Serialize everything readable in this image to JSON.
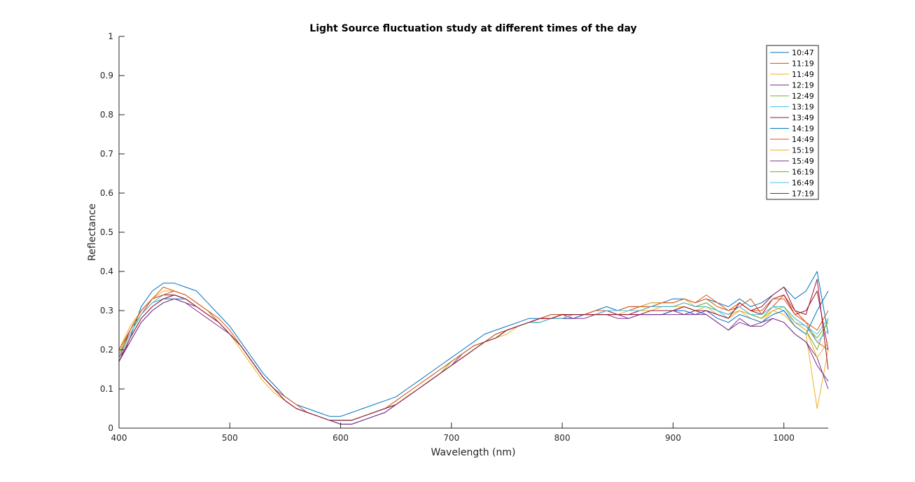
{
  "chart_data": {
    "type": "line",
    "title": "Light Source fluctuation study at different times of the day",
    "xlabel": "Wavelength (nm)",
    "ylabel": "Reflectance",
    "xlim": [
      400,
      1040
    ],
    "ylim": [
      0,
      1
    ],
    "x_ticks": [
      "400",
      "500",
      "600",
      "700",
      "800",
      "900",
      "1000"
    ],
    "y_ticks": [
      "0",
      "0.1",
      "0.2",
      "0.3",
      "0.4",
      "0.5",
      "0.6",
      "0.7",
      "0.8",
      "0.9",
      "1"
    ],
    "grid": false,
    "legend_position": "top-right",
    "x": [
      400,
      410,
      420,
      430,
      440,
      450,
      460,
      470,
      480,
      490,
      500,
      510,
      520,
      530,
      540,
      550,
      560,
      570,
      580,
      590,
      600,
      610,
      620,
      630,
      640,
      650,
      660,
      670,
      680,
      690,
      700,
      710,
      720,
      730,
      740,
      750,
      760,
      770,
      780,
      790,
      800,
      810,
      820,
      830,
      840,
      850,
      860,
      870,
      880,
      890,
      900,
      910,
      920,
      930,
      940,
      950,
      960,
      970,
      980,
      990,
      1000,
      1010,
      1020,
      1030,
      1040
    ],
    "series": [
      {
        "name": "10:47",
        "color": "#0072BD",
        "values": [
          0.17,
          0.23,
          0.31,
          0.35,
          0.37,
          0.37,
          0.36,
          0.35,
          0.32,
          0.29,
          0.26,
          0.22,
          0.18,
          0.14,
          0.11,
          0.08,
          0.06,
          0.05,
          0.04,
          0.03,
          0.03,
          0.04,
          0.05,
          0.06,
          0.07,
          0.08,
          0.1,
          0.12,
          0.14,
          0.16,
          0.18,
          0.2,
          0.22,
          0.24,
          0.25,
          0.26,
          0.27,
          0.28,
          0.28,
          0.29,
          0.29,
          0.29,
          0.29,
          0.3,
          0.31,
          0.3,
          0.31,
          0.31,
          0.32,
          0.32,
          0.33,
          0.33,
          0.32,
          0.33,
          0.32,
          0.31,
          0.33,
          0.31,
          0.32,
          0.34,
          0.36,
          0.33,
          0.35,
          0.4,
          0.24
        ]
      },
      {
        "name": "11:19",
        "color": "#D95319",
        "values": [
          0.19,
          0.24,
          0.29,
          0.33,
          0.36,
          0.35,
          0.34,
          0.32,
          0.3,
          0.28,
          0.25,
          0.21,
          0.17,
          0.13,
          0.1,
          0.08,
          0.06,
          0.04,
          0.03,
          0.02,
          0.02,
          0.02,
          0.03,
          0.04,
          0.05,
          0.06,
          0.08,
          0.1,
          0.12,
          0.14,
          0.16,
          0.18,
          0.2,
          0.22,
          0.23,
          0.25,
          0.26,
          0.27,
          0.28,
          0.29,
          0.29,
          0.29,
          0.29,
          0.3,
          0.3,
          0.3,
          0.3,
          0.31,
          0.31,
          0.32,
          0.32,
          0.33,
          0.32,
          0.34,
          0.32,
          0.3,
          0.31,
          0.33,
          0.29,
          0.31,
          0.34,
          0.3,
          0.27,
          0.22,
          0.2
        ]
      },
      {
        "name": "11:49",
        "color": "#EDB120",
        "values": [
          0.2,
          0.26,
          0.3,
          0.33,
          0.35,
          0.35,
          0.34,
          0.32,
          0.3,
          0.27,
          0.24,
          0.2,
          0.16,
          0.12,
          0.09,
          0.07,
          0.05,
          0.04,
          0.03,
          0.02,
          0.02,
          0.02,
          0.03,
          0.04,
          0.05,
          0.07,
          0.09,
          0.11,
          0.13,
          0.15,
          0.17,
          0.19,
          0.21,
          0.22,
          0.24,
          0.25,
          0.26,
          0.27,
          0.28,
          0.28,
          0.29,
          0.29,
          0.29,
          0.3,
          0.3,
          0.3,
          0.31,
          0.31,
          0.32,
          0.32,
          0.32,
          0.33,
          0.31,
          0.32,
          0.3,
          0.29,
          0.3,
          0.28,
          0.27,
          0.3,
          0.29,
          0.26,
          0.24,
          0.05,
          0.2
        ]
      },
      {
        "name": "12:19",
        "color": "#7E2F8E",
        "values": [
          0.18,
          0.22,
          0.27,
          0.3,
          0.32,
          0.33,
          0.32,
          0.31,
          0.29,
          0.27,
          0.24,
          0.21,
          0.17,
          0.13,
          0.1,
          0.07,
          0.05,
          0.04,
          0.03,
          0.02,
          0.01,
          0.01,
          0.02,
          0.03,
          0.04,
          0.06,
          0.08,
          0.1,
          0.12,
          0.14,
          0.16,
          0.19,
          0.21,
          0.22,
          0.24,
          0.25,
          0.26,
          0.27,
          0.28,
          0.28,
          0.29,
          0.28,
          0.29,
          0.29,
          0.29,
          0.29,
          0.28,
          0.29,
          0.29,
          0.29,
          0.3,
          0.29,
          0.3,
          0.29,
          0.27,
          0.25,
          0.28,
          0.26,
          0.27,
          0.28,
          0.27,
          0.24,
          0.22,
          0.18,
          0.1
        ]
      },
      {
        "name": "12:49",
        "color": "#77AC30",
        "values": [
          0.19,
          0.25,
          0.29,
          0.32,
          0.33,
          0.34,
          0.33,
          0.31,
          0.29,
          0.27,
          0.24,
          0.21,
          0.17,
          0.13,
          0.1,
          0.07,
          0.05,
          0.04,
          0.03,
          0.02,
          0.02,
          0.02,
          0.03,
          0.04,
          0.05,
          0.06,
          0.08,
          0.1,
          0.12,
          0.14,
          0.17,
          0.19,
          0.21,
          0.22,
          0.24,
          0.25,
          0.26,
          0.27,
          0.28,
          0.28,
          0.29,
          0.29,
          0.29,
          0.29,
          0.3,
          0.3,
          0.3,
          0.3,
          0.31,
          0.31,
          0.31,
          0.32,
          0.31,
          0.31,
          0.3,
          0.29,
          0.31,
          0.29,
          0.28,
          0.3,
          0.31,
          0.27,
          0.25,
          0.2,
          0.28
        ]
      },
      {
        "name": "13:19",
        "color": "#4DBEEE",
        "values": [
          0.18,
          0.24,
          0.29,
          0.32,
          0.34,
          0.34,
          0.33,
          0.31,
          0.29,
          0.27,
          0.24,
          0.21,
          0.17,
          0.13,
          0.1,
          0.07,
          0.05,
          0.04,
          0.03,
          0.02,
          0.02,
          0.02,
          0.03,
          0.04,
          0.05,
          0.06,
          0.08,
          0.1,
          0.12,
          0.14,
          0.16,
          0.18,
          0.2,
          0.22,
          0.23,
          0.25,
          0.26,
          0.27,
          0.27,
          0.28,
          0.28,
          0.29,
          0.29,
          0.29,
          0.3,
          0.3,
          0.3,
          0.3,
          0.31,
          0.31,
          0.31,
          0.32,
          0.31,
          0.32,
          0.3,
          0.28,
          0.3,
          0.29,
          0.28,
          0.31,
          0.3,
          0.27,
          0.26,
          0.22,
          0.25
        ]
      },
      {
        "name": "13:49",
        "color": "#A2142F",
        "values": [
          0.18,
          0.25,
          0.3,
          0.33,
          0.34,
          0.34,
          0.33,
          0.31,
          0.29,
          0.27,
          0.24,
          0.21,
          0.17,
          0.13,
          0.1,
          0.07,
          0.05,
          0.04,
          0.03,
          0.02,
          0.02,
          0.02,
          0.03,
          0.04,
          0.05,
          0.06,
          0.08,
          0.1,
          0.12,
          0.14,
          0.16,
          0.18,
          0.2,
          0.22,
          0.23,
          0.25,
          0.26,
          0.27,
          0.28,
          0.28,
          0.29,
          0.29,
          0.29,
          0.29,
          0.3,
          0.29,
          0.29,
          0.3,
          0.3,
          0.3,
          0.3,
          0.31,
          0.3,
          0.3,
          0.29,
          0.28,
          0.32,
          0.3,
          0.29,
          0.33,
          0.34,
          0.29,
          0.3,
          0.35,
          0.2
        ]
      },
      {
        "name": "14:19",
        "color": "#0072BD",
        "values": [
          0.17,
          0.23,
          0.28,
          0.31,
          0.33,
          0.33,
          0.33,
          0.31,
          0.29,
          0.27,
          0.24,
          0.21,
          0.17,
          0.13,
          0.1,
          0.07,
          0.05,
          0.04,
          0.03,
          0.02,
          0.01,
          0.01,
          0.02,
          0.03,
          0.04,
          0.06,
          0.08,
          0.1,
          0.12,
          0.14,
          0.16,
          0.18,
          0.2,
          0.22,
          0.23,
          0.25,
          0.26,
          0.27,
          0.27,
          0.28,
          0.28,
          0.28,
          0.29,
          0.29,
          0.29,
          0.29,
          0.29,
          0.29,
          0.29,
          0.29,
          0.3,
          0.3,
          0.29,
          0.3,
          0.28,
          0.27,
          0.29,
          0.28,
          0.27,
          0.29,
          0.3,
          0.26,
          0.24,
          0.3,
          0.35
        ]
      },
      {
        "name": "14:49",
        "color": "#D95319",
        "values": [
          0.2,
          0.25,
          0.3,
          0.33,
          0.34,
          0.35,
          0.34,
          0.32,
          0.3,
          0.27,
          0.24,
          0.21,
          0.17,
          0.13,
          0.1,
          0.07,
          0.05,
          0.04,
          0.03,
          0.02,
          0.02,
          0.02,
          0.03,
          0.04,
          0.05,
          0.07,
          0.09,
          0.11,
          0.13,
          0.15,
          0.17,
          0.19,
          0.21,
          0.22,
          0.24,
          0.25,
          0.26,
          0.27,
          0.28,
          0.28,
          0.29,
          0.29,
          0.29,
          0.3,
          0.3,
          0.3,
          0.31,
          0.31,
          0.31,
          0.32,
          0.32,
          0.33,
          0.32,
          0.33,
          0.31,
          0.3,
          0.32,
          0.3,
          0.3,
          0.33,
          0.33,
          0.29,
          0.27,
          0.25,
          0.3
        ]
      },
      {
        "name": "15:19",
        "color": "#EDB120",
        "values": [
          0.19,
          0.24,
          0.29,
          0.32,
          0.33,
          0.34,
          0.33,
          0.31,
          0.29,
          0.27,
          0.24,
          0.21,
          0.17,
          0.13,
          0.1,
          0.07,
          0.05,
          0.04,
          0.03,
          0.02,
          0.02,
          0.02,
          0.03,
          0.04,
          0.05,
          0.06,
          0.08,
          0.1,
          0.12,
          0.14,
          0.16,
          0.18,
          0.2,
          0.22,
          0.23,
          0.24,
          0.26,
          0.27,
          0.27,
          0.28,
          0.28,
          0.29,
          0.29,
          0.29,
          0.29,
          0.29,
          0.3,
          0.3,
          0.3,
          0.31,
          0.31,
          0.31,
          0.3,
          0.31,
          0.29,
          0.28,
          0.3,
          0.29,
          0.28,
          0.3,
          0.31,
          0.27,
          0.25,
          0.18,
          0.22
        ]
      },
      {
        "name": "15:49",
        "color": "#7E2F8E",
        "values": [
          0.17,
          0.22,
          0.27,
          0.3,
          0.32,
          0.33,
          0.32,
          0.3,
          0.28,
          0.26,
          0.24,
          0.21,
          0.17,
          0.13,
          0.1,
          0.07,
          0.05,
          0.04,
          0.03,
          0.02,
          0.01,
          0.01,
          0.02,
          0.03,
          0.04,
          0.06,
          0.08,
          0.1,
          0.12,
          0.14,
          0.16,
          0.18,
          0.2,
          0.22,
          0.23,
          0.25,
          0.26,
          0.27,
          0.27,
          0.28,
          0.28,
          0.28,
          0.28,
          0.29,
          0.29,
          0.28,
          0.28,
          0.29,
          0.29,
          0.29,
          0.29,
          0.29,
          0.29,
          0.29,
          0.27,
          0.25,
          0.27,
          0.26,
          0.26,
          0.28,
          0.27,
          0.24,
          0.22,
          0.16,
          0.12
        ]
      },
      {
        "name": "16:19",
        "color": "#77AC30",
        "values": [
          0.18,
          0.24,
          0.29,
          0.32,
          0.33,
          0.34,
          0.33,
          0.31,
          0.29,
          0.27,
          0.24,
          0.21,
          0.17,
          0.13,
          0.1,
          0.07,
          0.05,
          0.04,
          0.03,
          0.02,
          0.02,
          0.02,
          0.03,
          0.04,
          0.05,
          0.06,
          0.08,
          0.1,
          0.12,
          0.14,
          0.16,
          0.18,
          0.2,
          0.22,
          0.23,
          0.25,
          0.26,
          0.27,
          0.27,
          0.28,
          0.28,
          0.29,
          0.29,
          0.29,
          0.3,
          0.3,
          0.3,
          0.3,
          0.31,
          0.31,
          0.31,
          0.32,
          0.31,
          0.32,
          0.3,
          0.29,
          0.31,
          0.29,
          0.28,
          0.31,
          0.31,
          0.28,
          0.26,
          0.23,
          0.27
        ]
      },
      {
        "name": "16:49",
        "color": "#4DBEEE",
        "values": [
          0.18,
          0.24,
          0.29,
          0.32,
          0.33,
          0.34,
          0.33,
          0.31,
          0.29,
          0.27,
          0.24,
          0.21,
          0.17,
          0.13,
          0.1,
          0.07,
          0.05,
          0.04,
          0.03,
          0.02,
          0.02,
          0.02,
          0.03,
          0.04,
          0.05,
          0.06,
          0.08,
          0.1,
          0.12,
          0.14,
          0.16,
          0.18,
          0.2,
          0.22,
          0.23,
          0.25,
          0.26,
          0.27,
          0.27,
          0.28,
          0.28,
          0.29,
          0.29,
          0.29,
          0.3,
          0.3,
          0.3,
          0.3,
          0.31,
          0.31,
          0.31,
          0.32,
          0.31,
          0.31,
          0.3,
          0.29,
          0.31,
          0.29,
          0.29,
          0.31,
          0.31,
          0.28,
          0.26,
          0.24,
          0.28
        ]
      },
      {
        "name": "17:19",
        "color": "#A2142F",
        "values": [
          0.17,
          0.23,
          0.28,
          0.31,
          0.33,
          0.34,
          0.33,
          0.31,
          0.29,
          0.27,
          0.24,
          0.21,
          0.17,
          0.13,
          0.1,
          0.07,
          0.05,
          0.04,
          0.03,
          0.02,
          0.02,
          0.02,
          0.03,
          0.04,
          0.05,
          0.06,
          0.08,
          0.1,
          0.12,
          0.14,
          0.16,
          0.18,
          0.2,
          0.22,
          0.23,
          0.25,
          0.26,
          0.27,
          0.28,
          0.28,
          0.29,
          0.29,
          0.29,
          0.29,
          0.29,
          0.29,
          0.29,
          0.29,
          0.3,
          0.3,
          0.3,
          0.31,
          0.3,
          0.3,
          0.29,
          0.28,
          0.32,
          0.3,
          0.31,
          0.34,
          0.36,
          0.3,
          0.29,
          0.38,
          0.15
        ]
      }
    ]
  }
}
